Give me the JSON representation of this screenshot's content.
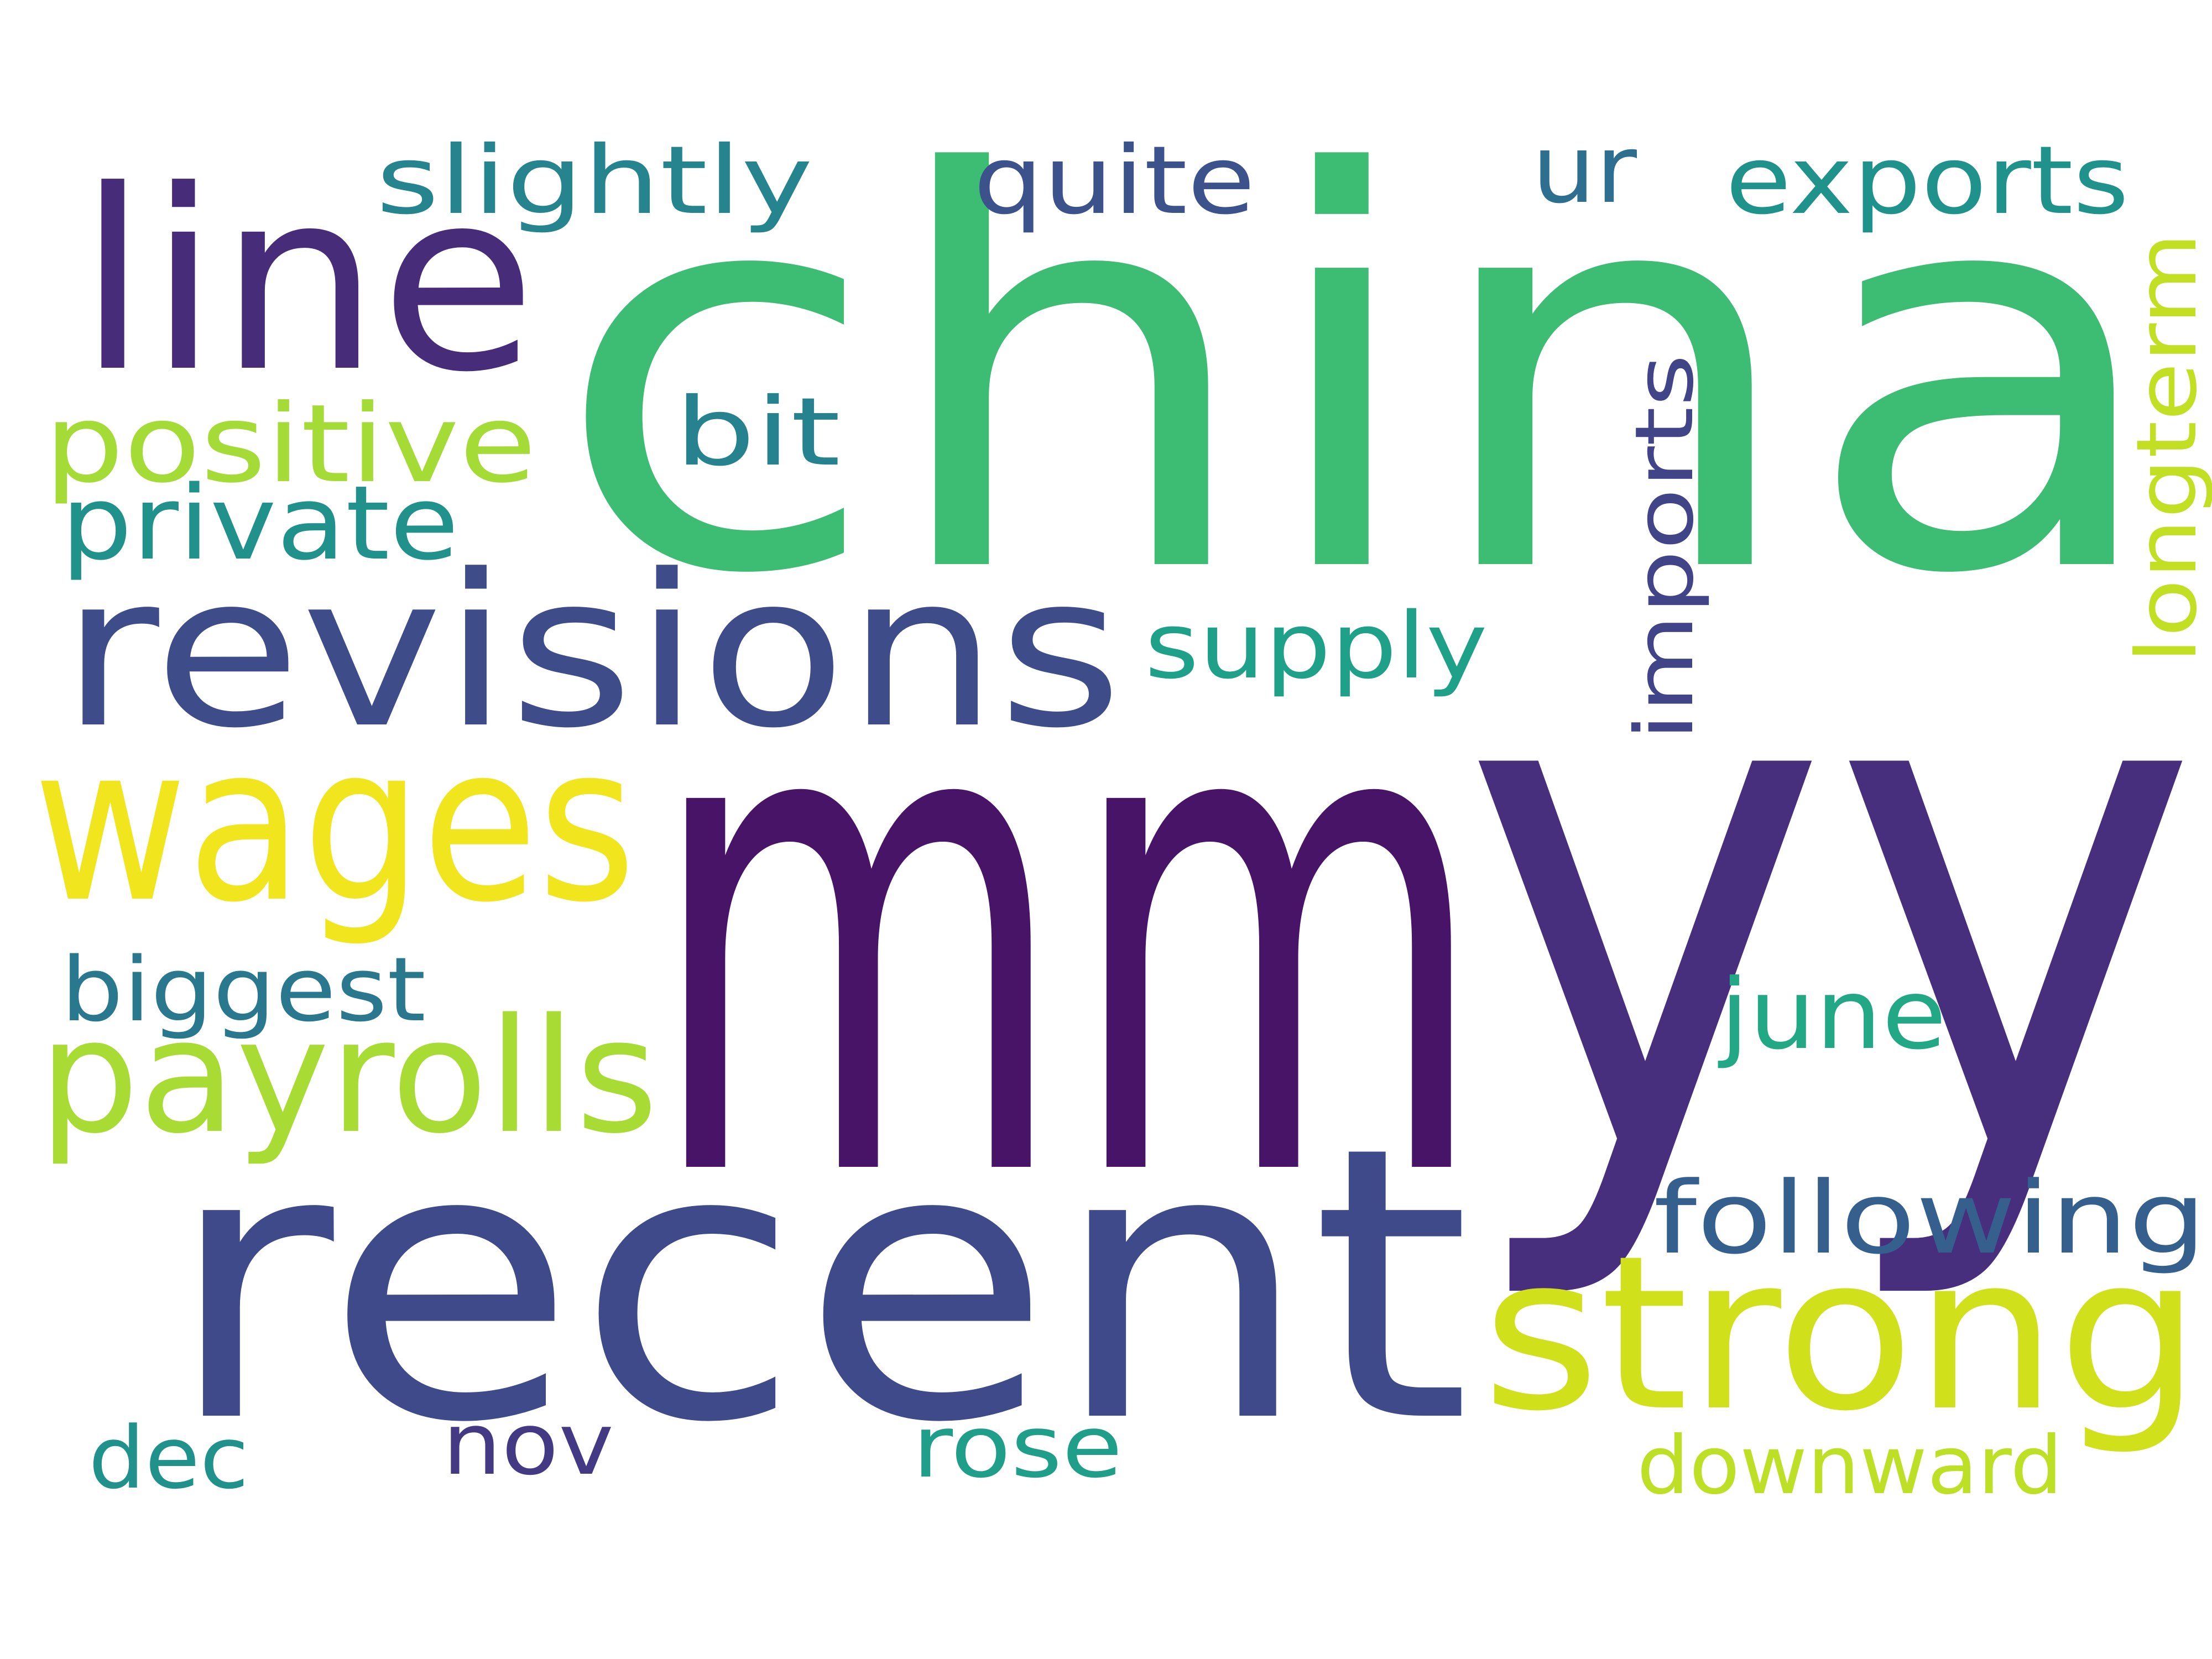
{
  "words": [
    {
      "text": "china",
      "color": "#3dbc74"
    },
    {
      "text": "mm",
      "color": "#481467"
    },
    {
      "text": "yy",
      "color": "#472f7d"
    },
    {
      "text": "recent",
      "color": "#3e4a89"
    },
    {
      "text": "line",
      "color": "#472c7a"
    },
    {
      "text": "revisions",
      "color": "#3e4c8a"
    },
    {
      "text": "wages",
      "color": "#f1e51d"
    },
    {
      "text": "payrolls",
      "color": "#a8db34"
    },
    {
      "text": "strong",
      "color": "#d0e11c"
    },
    {
      "text": "positive",
      "color": "#a5db36"
    },
    {
      "text": "private",
      "color": "#21918c"
    },
    {
      "text": "slightly",
      "color": "#25848e"
    },
    {
      "text": "quite",
      "color": "#3b528b"
    },
    {
      "text": "ur",
      "color": "#2e6e8e"
    },
    {
      "text": "exports",
      "color": "#20928c"
    },
    {
      "text": "bit",
      "color": "#26828e"
    },
    {
      "text": "imports",
      "color": "#414487"
    },
    {
      "text": "longterm",
      "color": "#c2df23"
    },
    {
      "text": "supply",
      "color": "#1fa088"
    },
    {
      "text": "biggest",
      "color": "#2a788e"
    },
    {
      "text": "june",
      "color": "#22a884"
    },
    {
      "text": "following",
      "color": "#355f8d"
    },
    {
      "text": "dec",
      "color": "#21918c"
    },
    {
      "text": "nov",
      "color": "#443983"
    },
    {
      "text": "rose",
      "color": "#1f9e89"
    },
    {
      "text": "downward",
      "color": "#bddf26"
    }
  ]
}
